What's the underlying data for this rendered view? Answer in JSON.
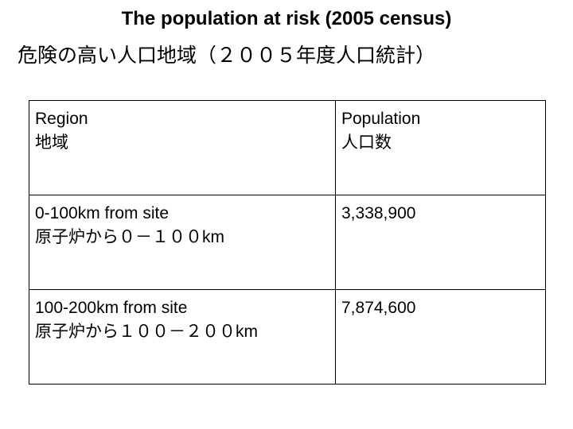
{
  "title": {
    "english": "The population at risk (2005 census)",
    "japanese": "危険の高い人口地域（２００５年度人口統計）"
  },
  "table": {
    "header": [
      {
        "english": "Region",
        "japanese": "地域"
      },
      {
        "english": "Population",
        "japanese": "人口数"
      }
    ],
    "rows": [
      [
        {
          "english": "0-100km from site",
          "japanese": "原子炉から０－１００km"
        },
        {
          "english": "3,338,900"
        }
      ],
      [
        {
          "english": "100-200km from site",
          "japanese": "原子炉から１００－２００km"
        },
        {
          "english": "7,874,600"
        }
      ]
    ]
  }
}
